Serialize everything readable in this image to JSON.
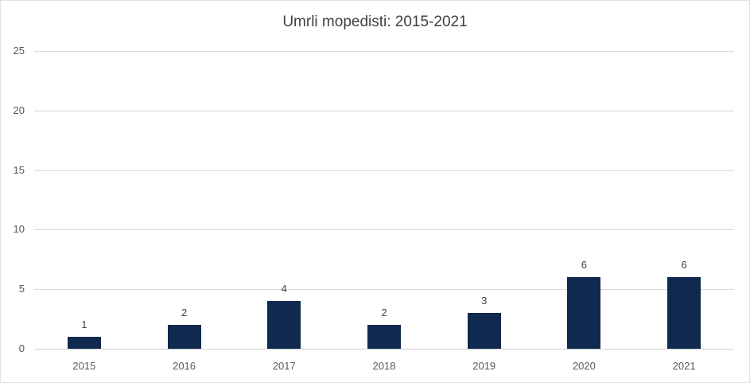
{
  "chart_data": {
    "type": "bar",
    "title": "Umrli mopedisti: 2015-2021",
    "categories": [
      "2015",
      "2016",
      "2017",
      "2018",
      "2019",
      "2020",
      "2021"
    ],
    "values": [
      1,
      2,
      4,
      2,
      3,
      6,
      6
    ],
    "xlabel": "",
    "ylabel": "",
    "ylim": [
      0,
      25
    ],
    "yticks": [
      0,
      5,
      10,
      15,
      20,
      25
    ],
    "grid": true,
    "legend": false,
    "data_labels_shown": true,
    "colors": {
      "bar": "#10294e",
      "title": "#404040",
      "tick_label": "#595959",
      "value_label": "#404040",
      "gridline": "#d9d9d9",
      "axis_line": "#d2d2d2",
      "background": "#ffffff",
      "border": "#e2e2e2"
    }
  }
}
